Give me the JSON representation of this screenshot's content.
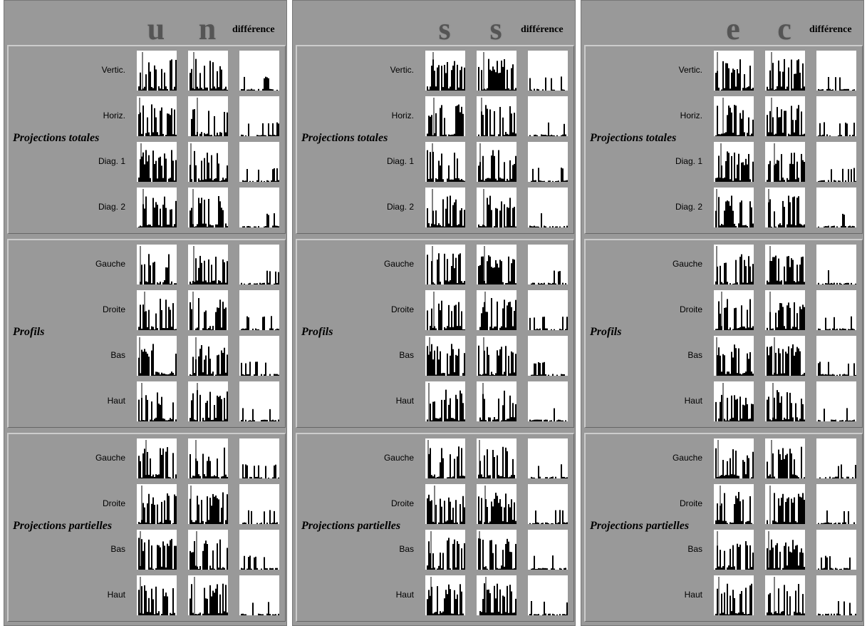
{
  "panels": [
    {
      "letters": [
        "u",
        "n"
      ],
      "difference": "différence",
      "groups": [
        {
          "title": "Projections totales",
          "rows": [
            "Vertic.",
            "Horiz.",
            "Diag. 1",
            "Diag. 2"
          ]
        },
        {
          "title": "Profils",
          "rows": [
            "Gauche",
            "Droite",
            "Bas",
            "Haut"
          ]
        },
        {
          "title": "Projections partielles",
          "rows": [
            "Gauche",
            "Droite",
            "Bas",
            "Haut"
          ]
        }
      ]
    },
    {
      "letters": [
        "s",
        "s"
      ],
      "difference": "différence",
      "groups": [
        {
          "title": "Projections totales",
          "rows": [
            "Vertic.",
            "Horiz.",
            "Diag. 1",
            "Diag. 2"
          ]
        },
        {
          "title": "Profils",
          "rows": [
            "Gauche",
            "Droite",
            "Bas",
            "Haut"
          ]
        },
        {
          "title": "Projections partielles",
          "rows": [
            "Gauche",
            "Droite",
            "Bas",
            "Haut"
          ]
        }
      ]
    },
    {
      "letters": [
        "e",
        "c"
      ],
      "difference": "différence",
      "groups": [
        {
          "title": "Projections totales",
          "rows": [
            "Vertic.",
            "Horiz.",
            "Diag. 1",
            "Diag. 2"
          ]
        },
        {
          "title": "Profils",
          "rows": [
            "Gauche",
            "Droite",
            "Bas",
            "Haut"
          ]
        },
        {
          "title": "Projections partielles",
          "rows": [
            "Gauche",
            "Droite",
            "Bas",
            "Haut"
          ]
        }
      ]
    }
  ]
}
